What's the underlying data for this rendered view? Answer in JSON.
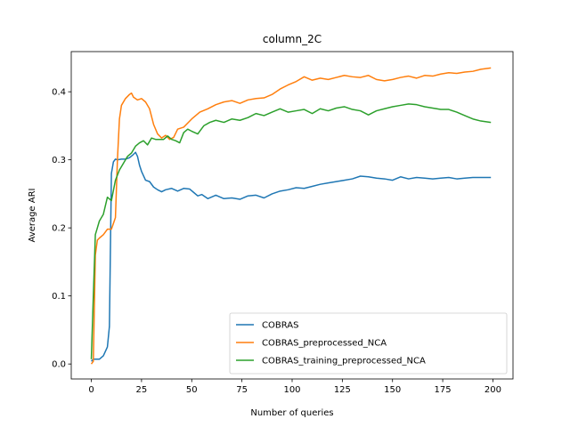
{
  "chart_data": {
    "type": "line",
    "title": "column_2C",
    "xlabel": "Number of queries",
    "ylabel": "Average ARI",
    "xlim": [
      -10,
      210
    ],
    "ylim": [
      -0.022,
      0.459
    ],
    "xticks": [
      0,
      25,
      50,
      75,
      100,
      125,
      150,
      175,
      200
    ],
    "yticks": [
      0.0,
      0.1,
      0.2,
      0.3,
      0.4
    ],
    "ytick_labels": [
      "0.0",
      "0.1",
      "0.2",
      "0.3",
      "0.4"
    ],
    "grid": false,
    "legend_position": "lower-right",
    "series": [
      {
        "name": "COBRAS",
        "color": "#1f77b4",
        "x": [
          0,
          1,
          2,
          4,
          6,
          8,
          9,
          10,
          11,
          12,
          13,
          15,
          17,
          19,
          21,
          22,
          23,
          24,
          25,
          27,
          29,
          31,
          33,
          35,
          37,
          40,
          43,
          46,
          49,
          51,
          53,
          55,
          58,
          62,
          66,
          70,
          74,
          78,
          82,
          86,
          90,
          94,
          98,
          102,
          106,
          110,
          114,
          118,
          122,
          126,
          130,
          134,
          138,
          142,
          146,
          150,
          154,
          158,
          162,
          166,
          170,
          174,
          178,
          182,
          186,
          190,
          194,
          199
        ],
        "y": [
          0.004,
          0.007,
          0.007,
          0.007,
          0.012,
          0.025,
          0.055,
          0.28,
          0.297,
          0.301,
          0.3,
          0.301,
          0.301,
          0.303,
          0.308,
          0.311,
          0.305,
          0.292,
          0.283,
          0.27,
          0.268,
          0.26,
          0.256,
          0.253,
          0.256,
          0.258,
          0.254,
          0.258,
          0.257,
          0.252,
          0.247,
          0.249,
          0.243,
          0.248,
          0.243,
          0.244,
          0.242,
          0.247,
          0.248,
          0.244,
          0.25,
          0.254,
          0.256,
          0.259,
          0.258,
          0.261,
          0.264,
          0.266,
          0.268,
          0.27,
          0.272,
          0.276,
          0.275,
          0.273,
          0.272,
          0.27,
          0.275,
          0.272,
          0.274,
          0.273,
          0.272,
          0.273,
          0.274,
          0.272,
          0.273,
          0.274,
          0.274,
          0.274
        ]
      },
      {
        "name": "COBRAS_preprocessed_NCA",
        "color": "#ff7f0e",
        "x": [
          0,
          1,
          2,
          3,
          4,
          6,
          8,
          10,
          12,
          13,
          14,
          15,
          17,
          19,
          20,
          21,
          23,
          25,
          27,
          29,
          31,
          33,
          35,
          37,
          39,
          41,
          43,
          46,
          50,
          54,
          58,
          62,
          66,
          70,
          74,
          78,
          82,
          86,
          90,
          94,
          98,
          102,
          106,
          110,
          114,
          118,
          122,
          126,
          130,
          134,
          138,
          142,
          146,
          150,
          154,
          158,
          162,
          166,
          170,
          174,
          178,
          182,
          186,
          190,
          194,
          199
        ],
        "y": [
          0.0,
          0.004,
          0.16,
          0.182,
          0.185,
          0.19,
          0.198,
          0.198,
          0.215,
          0.3,
          0.36,
          0.38,
          0.39,
          0.396,
          0.398,
          0.392,
          0.388,
          0.39,
          0.385,
          0.375,
          0.352,
          0.338,
          0.332,
          0.336,
          0.33,
          0.333,
          0.345,
          0.348,
          0.36,
          0.37,
          0.375,
          0.381,
          0.385,
          0.387,
          0.383,
          0.388,
          0.39,
          0.391,
          0.396,
          0.404,
          0.41,
          0.415,
          0.422,
          0.417,
          0.42,
          0.418,
          0.421,
          0.424,
          0.422,
          0.421,
          0.424,
          0.418,
          0.416,
          0.418,
          0.421,
          0.423,
          0.42,
          0.424,
          0.423,
          0.426,
          0.428,
          0.427,
          0.429,
          0.43,
          0.433,
          0.435
        ]
      },
      {
        "name": "COBRAS_training_preprocessed_NCA",
        "color": "#2ca02c",
        "x": [
          0,
          1,
          2,
          3,
          4,
          6,
          8,
          10,
          12,
          14,
          16,
          18,
          20,
          22,
          24,
          26,
          28,
          30,
          32,
          34,
          36,
          38,
          40,
          42,
          44,
          46,
          48,
          50,
          53,
          56,
          59,
          62,
          66,
          70,
          74,
          78,
          82,
          86,
          90,
          94,
          98,
          102,
          106,
          110,
          114,
          118,
          122,
          126,
          130,
          134,
          138,
          142,
          146,
          150,
          154,
          158,
          162,
          166,
          170,
          174,
          178,
          182,
          186,
          190,
          194,
          199
        ],
        "y": [
          0.007,
          0.1,
          0.19,
          0.2,
          0.21,
          0.22,
          0.245,
          0.24,
          0.27,
          0.285,
          0.295,
          0.305,
          0.31,
          0.32,
          0.325,
          0.328,
          0.322,
          0.332,
          0.33,
          0.33,
          0.33,
          0.335,
          0.33,
          0.328,
          0.325,
          0.34,
          0.345,
          0.342,
          0.338,
          0.35,
          0.355,
          0.358,
          0.355,
          0.36,
          0.358,
          0.362,
          0.368,
          0.365,
          0.37,
          0.375,
          0.37,
          0.372,
          0.374,
          0.368,
          0.375,
          0.372,
          0.376,
          0.378,
          0.374,
          0.372,
          0.366,
          0.372,
          0.375,
          0.378,
          0.38,
          0.382,
          0.381,
          0.378,
          0.376,
          0.374,
          0.374,
          0.37,
          0.365,
          0.36,
          0.357,
          0.355
        ]
      }
    ]
  }
}
